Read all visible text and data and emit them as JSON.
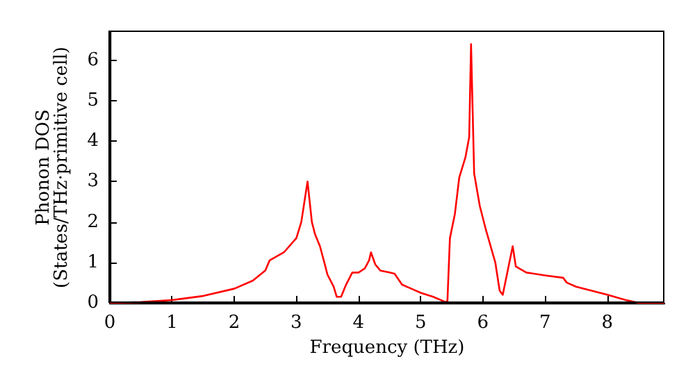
{
  "chart_data": {
    "type": "line",
    "xlabel": "Frequency (THz)",
    "ylabel": "Phonon DOS\n(States/THz·primitive cell)",
    "x": [
      0,
      0.5,
      1,
      1.5,
      2,
      2.3,
      2.5,
      2.57,
      2.8,
      3.0,
      3.08,
      3.13,
      3.18,
      3.25,
      3.3,
      3.38,
      3.45,
      3.5,
      3.6,
      3.65,
      3.72,
      3.8,
      3.9,
      4.0,
      4.1,
      4.17,
      4.2,
      4.27,
      4.35,
      4.5,
      4.58,
      4.7,
      4.85,
      5.0,
      5.2,
      5.4,
      5.43,
      5.47,
      5.55,
      5.62,
      5.72,
      5.78,
      5.81,
      5.86,
      5.95,
      6.05,
      6.2,
      6.27,
      6.32,
      6.48,
      6.53,
      6.7,
      7.0,
      7.29,
      7.35,
      7.5,
      8.0,
      8.3,
      8.51,
      8.92
    ],
    "series": [
      {
        "color": "#ff0000",
        "values": [
          0,
          0.02,
          0.07,
          0.17,
          0.35,
          0.55,
          0.8,
          1.05,
          1.25,
          1.6,
          2.0,
          2.5,
          3.0,
          2.0,
          1.7,
          1.4,
          1.0,
          0.7,
          0.4,
          0.15,
          0.15,
          0.45,
          0.75,
          0.75,
          0.85,
          1.05,
          1.25,
          0.95,
          0.8,
          0.75,
          0.72,
          0.45,
          0.35,
          0.25,
          0.15,
          0.02,
          0.05,
          1.6,
          2.2,
          3.1,
          3.6,
          4.1,
          6.4,
          3.2,
          2.4,
          1.8,
          1.0,
          0.3,
          0.2,
          1.4,
          0.9,
          0.75,
          0.68,
          0.62,
          0.5,
          0.4,
          0.2,
          0.07,
          0,
          0
        ]
      }
    ],
    "xlim": [
      0,
      8.92
    ],
    "xticks": [
      0,
      1,
      2,
      3,
      4,
      5,
      6,
      7,
      8
    ],
    "ylim": [
      0,
      6.7
    ],
    "yticks": [
      0,
      1,
      2,
      3,
      4,
      5,
      6
    ],
    "grid": false,
    "marker": "none",
    "line_style": "solid"
  }
}
